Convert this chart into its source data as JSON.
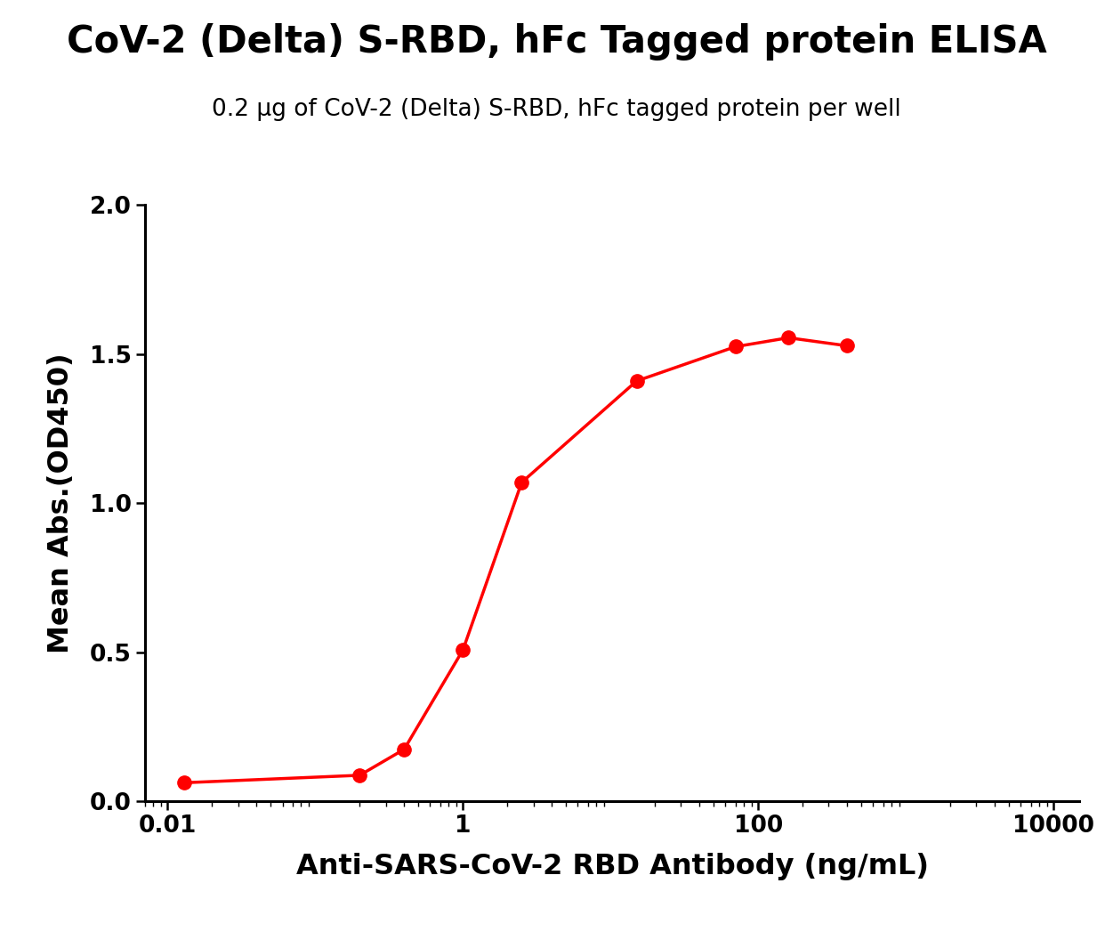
{
  "title": "CoV-2 (Delta) S-RBD, hFc Tagged protein ELISA",
  "subtitle": "0.2 μg of CoV-2 (Delta) S-RBD, hFc tagged protein per well",
  "xlabel": "Anti-SARS-CoV-2 RBD Antibody (ng/mL)",
  "ylabel": "Mean Abs.(OD450)",
  "x_data": [
    0.013,
    0.2,
    0.4,
    1.0,
    2.5,
    15,
    70,
    160,
    400
  ],
  "y_data": [
    0.063,
    0.088,
    0.175,
    0.508,
    1.07,
    1.41,
    1.525,
    1.555,
    1.528
  ],
  "xtick_positions": [
    0.01,
    1,
    100,
    10000
  ],
  "xtick_labels": [
    "0.01",
    "1",
    "100",
    "10000"
  ],
  "ylim": [
    0.0,
    2.0
  ],
  "yticks": [
    0.0,
    0.5,
    1.0,
    1.5,
    2.0
  ],
  "ytick_labels": [
    "0.0",
    "0.5",
    "1.0",
    "1.5",
    "2.0"
  ],
  "xmin": 0.007,
  "xmax": 15000,
  "line_color": "#FF0000",
  "marker_color": "#FF0000",
  "marker_size": 11,
  "line_width": 2.5,
  "title_fontsize": 30,
  "subtitle_fontsize": 19,
  "axis_label_fontsize": 23,
  "tick_fontsize": 19,
  "background_color": "#FFFFFF"
}
